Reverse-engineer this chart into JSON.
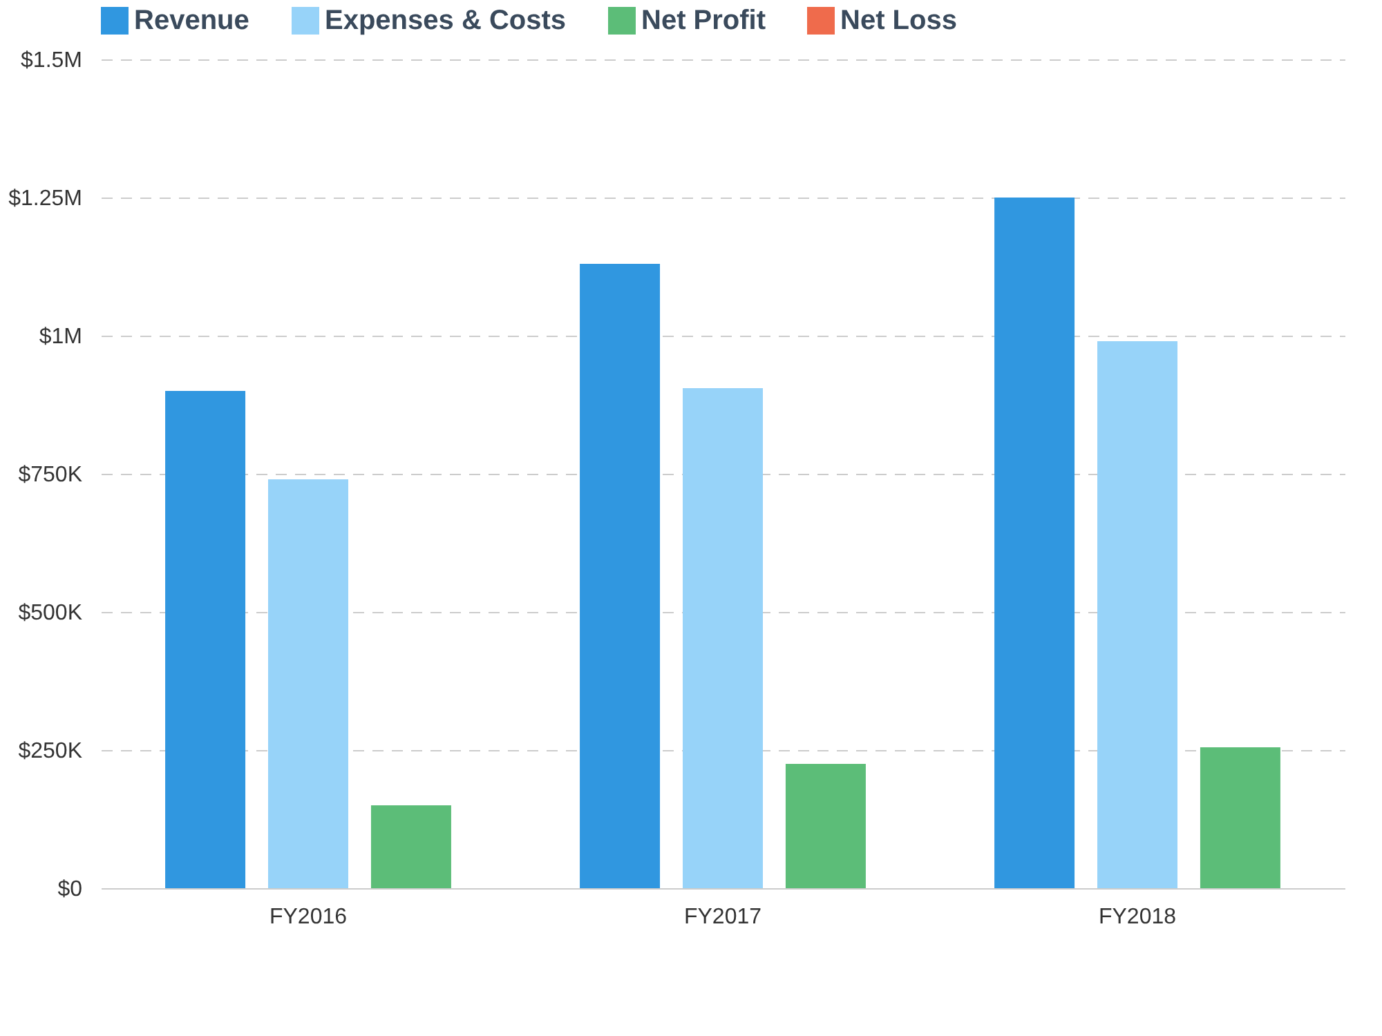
{
  "chart_data": {
    "type": "bar",
    "categories": [
      "FY2016",
      "FY2017",
      "FY2018"
    ],
    "series": [
      {
        "name": "Revenue",
        "color": "#3097e0",
        "values": [
          900000,
          1130000,
          1250000
        ]
      },
      {
        "name": "Expenses & Costs",
        "color": "#97d3f9",
        "values": [
          740000,
          905000,
          990000
        ]
      },
      {
        "name": "Net Profit",
        "color": "#5cbd78",
        "values": [
          150000,
          225000,
          255000
        ]
      },
      {
        "name": "Net Loss",
        "color": "#ef6b4c",
        "values": [
          null,
          null,
          null
        ]
      }
    ],
    "ylim": [
      0,
      1500000
    ],
    "yticks": [
      {
        "value": 0,
        "label": "$0"
      },
      {
        "value": 250000,
        "label": "$250K"
      },
      {
        "value": 500000,
        "label": "$500K"
      },
      {
        "value": 750000,
        "label": "$750K"
      },
      {
        "value": 1000000,
        "label": "$1M"
      },
      {
        "value": 1250000,
        "label": "$1.25M"
      },
      {
        "value": 1500000,
        "label": "$1.5M"
      }
    ],
    "grid": "y",
    "legend": "top"
  }
}
